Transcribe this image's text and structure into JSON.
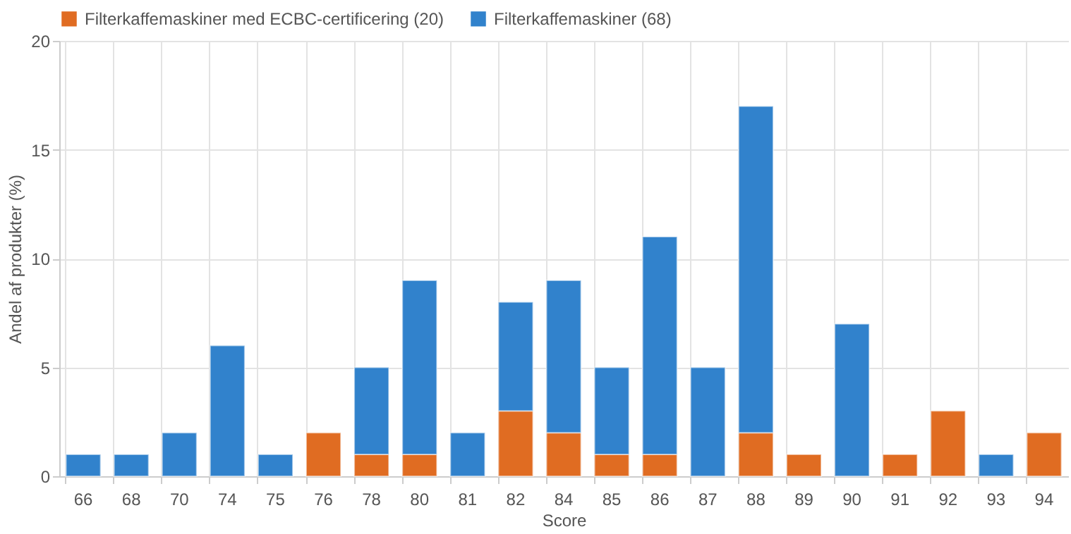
{
  "chart_data": {
    "type": "bar",
    "stacked": true,
    "xlabel": "Score",
    "ylabel": "Andel af produkter (%)",
    "categories": [
      "66",
      "68",
      "70",
      "74",
      "75",
      "76",
      "78",
      "80",
      "81",
      "82",
      "84",
      "85",
      "86",
      "87",
      "88",
      "89",
      "90",
      "91",
      "92",
      "93",
      "94"
    ],
    "series": [
      {
        "name": "Filterkaffemaskiner med ECBC-certificering (20)",
        "color": "#e06c22",
        "values": [
          0,
          0,
          0,
          0,
          0,
          2,
          1,
          1,
          0,
          3,
          2,
          1,
          1,
          0,
          2,
          1,
          0,
          1,
          3,
          0,
          2
        ]
      },
      {
        "name": "Filterkaffemaskiner (68)",
        "color": "#3182cc",
        "values": [
          1,
          1,
          2,
          6,
          1,
          0,
          4,
          8,
          2,
          5,
          7,
          4,
          10,
          5,
          15,
          0,
          7,
          0,
          0,
          1,
          0
        ]
      }
    ],
    "ylim": [
      0,
      20
    ],
    "yticks": [
      0,
      5,
      10,
      15,
      20
    ],
    "grid": true,
    "legend": "top left"
  }
}
